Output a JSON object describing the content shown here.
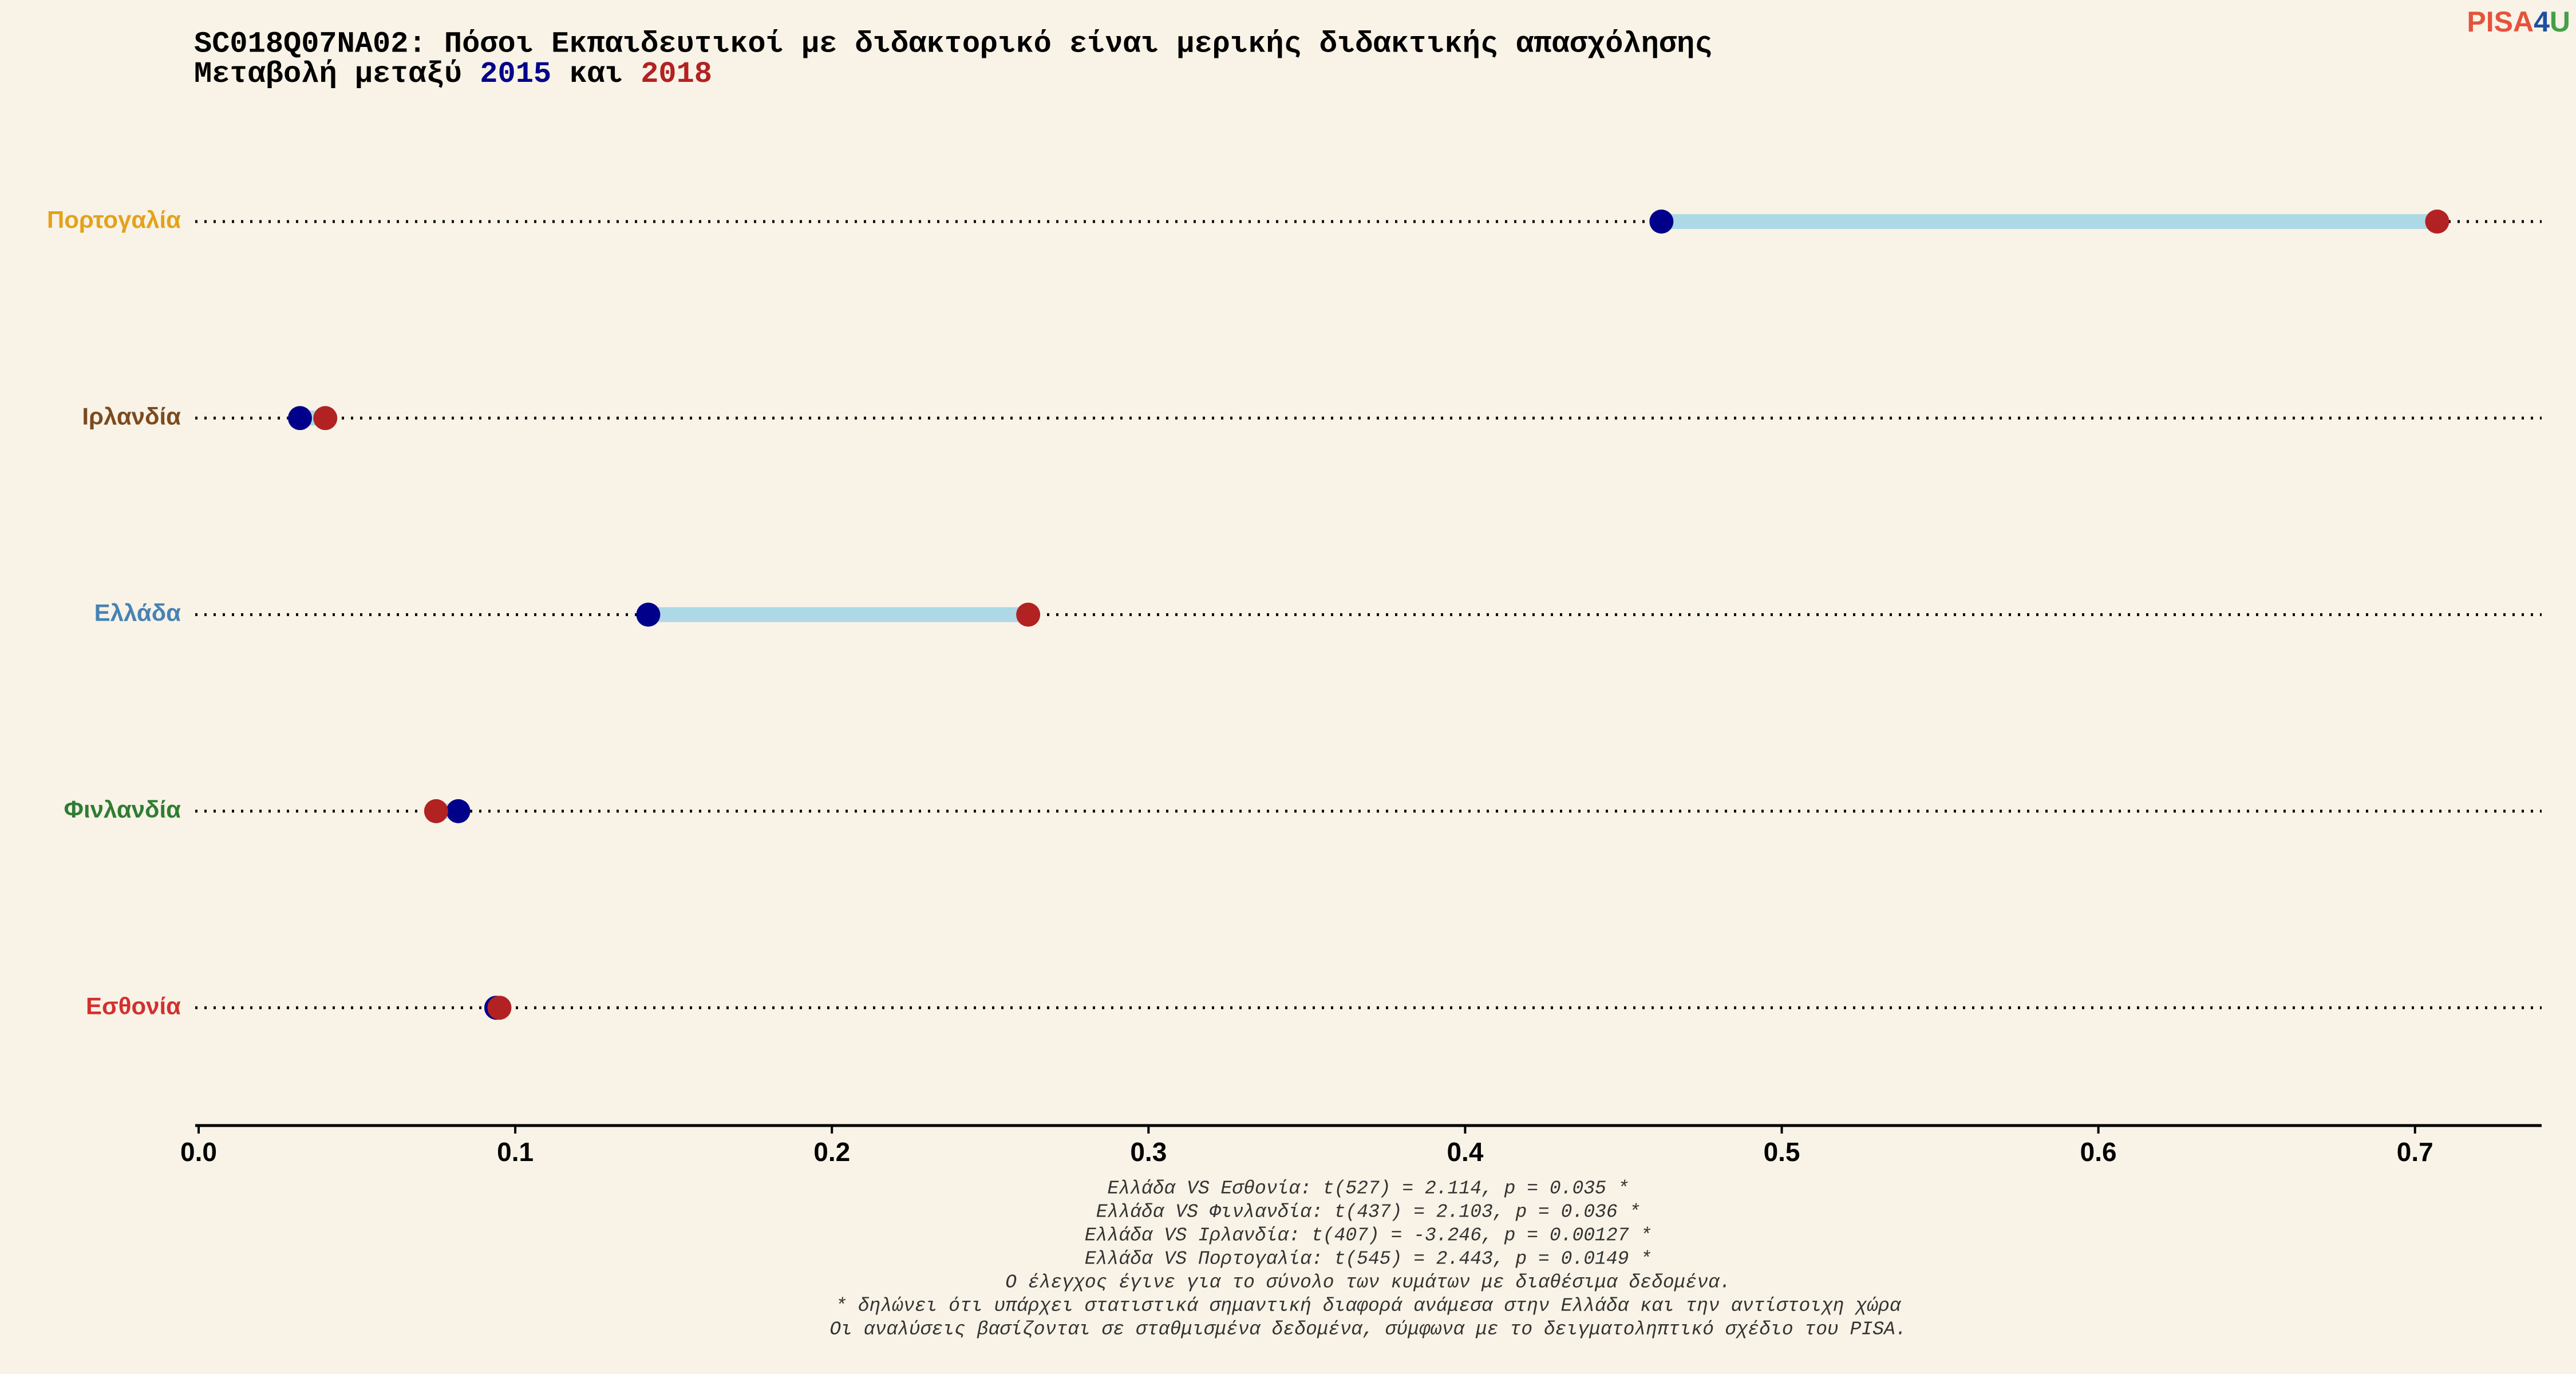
{
  "chart_data": {
    "type": "dumbbell",
    "title": "SC018Q07NA02: Πόσοι Εκπαιδευτικοί με διδακτορικό είναι μερικής διδακτικής απασχόλησης",
    "subtitle": {
      "prefix": "Μεταβολή μεταξύ",
      "joiner": "και"
    },
    "categories": [
      "Πορτογαλία",
      "Ιρλανδία",
      "Ελλάδα",
      "Φινλανδία",
      "Εσθονία"
    ],
    "category_colors": [
      "#e3a21a",
      "#7b4a1e",
      "#4682b4",
      "#2e7d32",
      "#d32f2f"
    ],
    "series": [
      {
        "name": "2015",
        "color": "#00008b",
        "values": [
          0.462,
          0.032,
          0.142,
          0.082,
          0.094
        ]
      },
      {
        "name": "2018",
        "color": "#b22222",
        "values": [
          0.707,
          0.04,
          0.262,
          0.075,
          0.095
        ]
      }
    ],
    "segment_color": "#add8e6",
    "xlim": [
      0,
      0.74
    ],
    "xticks": [
      {
        "value": 0,
        "label": "0.0"
      },
      0.1,
      0.2,
      0.3,
      0.4,
      0.5,
      0.6,
      0.7
    ],
    "footnotes": [
      "Ελλάδα VS Εσθονία: t(527) = 2.114, p = 0.035 *",
      "Ελλάδα VS Φινλανδία: t(437) = 2.103, p = 0.036 *",
      "Ελλάδα VS Ιρλανδία: t(407) = -3.246, p = 0.00127 *",
      "Ελλάδα VS Πορτογαλία: t(545) = 2.443, p = 0.0149 *",
      "Ο έλεγχος έγινε για το σύνολο των κυμάτων με διαθέσιμα δεδομένα.",
      "* δηλώνει ότι υπάρχει στατιστικά σημαντική διαφορά ανάμεσα στην Ελλάδα και την αντίστοιχη χώρα",
      "Οι αναλύσεις βασίζονται σε σταθμισμένα δεδομένα, σύμφωνα με το δειγματοληπτικό σχέδιο του PISA."
    ],
    "logo": [
      "PISA",
      "4",
      "U"
    ]
  }
}
